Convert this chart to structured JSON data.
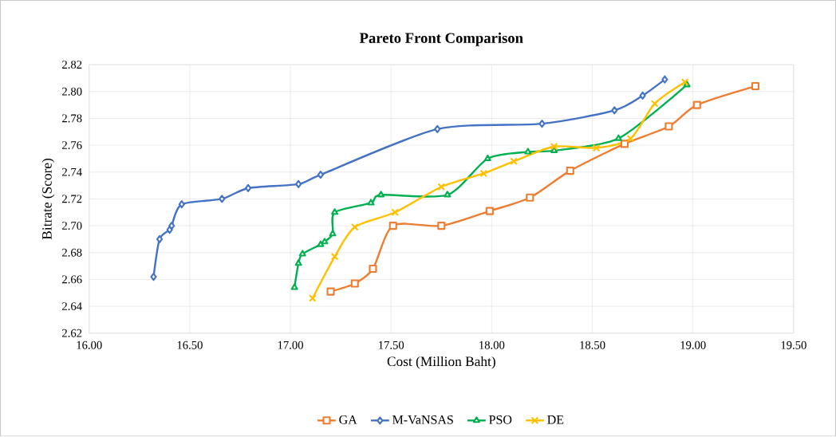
{
  "chart_data": {
    "type": "line",
    "title": "Pareto Front Comparison",
    "xlabel": "Cost (Million Baht)",
    "ylabel": "Bitrate (Score)",
    "xlim": [
      16,
      19.5
    ],
    "ylim": [
      2.62,
      2.82
    ],
    "xticks": [
      {
        "value": 16,
        "label": "16.00"
      },
      {
        "value": 16.5,
        "label": "16.50"
      },
      {
        "value": 17,
        "label": "17.00"
      },
      {
        "value": 17.5,
        "label": "17.50"
      },
      {
        "value": 18,
        "label": "18.00"
      },
      {
        "value": 18.5,
        "label": "18.50"
      },
      {
        "value": 19,
        "label": "19.00"
      },
      {
        "value": 19.5,
        "label": "19.50"
      }
    ],
    "yticks": [
      {
        "value": 2.62,
        "label": "2.62"
      },
      {
        "value": 2.64,
        "label": "2.64"
      },
      {
        "value": 2.66,
        "label": "2.66"
      },
      {
        "value": 2.68,
        "label": "2.68"
      },
      {
        "value": 2.7,
        "label": "2.70"
      },
      {
        "value": 2.72,
        "label": "2.72"
      },
      {
        "value": 2.74,
        "label": "2.74"
      },
      {
        "value": 2.76,
        "label": "2.76"
      },
      {
        "value": 2.78,
        "label": "2.78"
      },
      {
        "value": 2.8,
        "label": "2.80"
      },
      {
        "value": 2.82,
        "label": "2.82"
      }
    ],
    "grid": true,
    "legend": "bottom",
    "series": [
      {
        "name": "GA",
        "color": "#ed7d31",
        "marker": "square",
        "x": [
          17.2,
          17.32,
          17.41,
          17.51,
          17.75,
          17.99,
          18.19,
          18.39,
          18.66,
          18.88,
          19.02,
          19.31
        ],
        "values": [
          2.651,
          2.657,
          2.668,
          2.7,
          2.7,
          2.711,
          2.721,
          2.741,
          2.761,
          2.774,
          2.79,
          2.804
        ]
      },
      {
        "name": "M-VaNSAS",
        "color": "#4472c4",
        "marker": "diamond",
        "x": [
          16.32,
          16.35,
          16.4,
          16.41,
          16.46,
          16.66,
          16.79,
          17.04,
          17.15,
          17.73,
          18.25,
          18.61,
          18.75,
          18.86
        ],
        "values": [
          2.662,
          2.69,
          2.697,
          2.7,
          2.716,
          2.72,
          2.728,
          2.731,
          2.738,
          2.772,
          2.776,
          2.786,
          2.797,
          2.809
        ]
      },
      {
        "name": "PSO",
        "color": "#00b050",
        "marker": "triangle",
        "x": [
          17.02,
          17.04,
          17.06,
          17.15,
          17.17,
          17.21,
          17.22,
          17.4,
          17.45,
          17.78,
          17.98,
          18.18,
          18.31,
          18.63,
          18.97
        ],
        "values": [
          2.654,
          2.672,
          2.679,
          2.686,
          2.688,
          2.694,
          2.71,
          2.717,
          2.723,
          2.723,
          2.75,
          2.755,
          2.756,
          2.765,
          2.805
        ]
      },
      {
        "name": "DE",
        "color": "#ffc000",
        "marker": "cross",
        "x": [
          17.11,
          17.22,
          17.32,
          17.52,
          17.75,
          17.96,
          18.11,
          18.31,
          18.52,
          18.69,
          18.81,
          18.96
        ],
        "values": [
          2.646,
          2.677,
          2.699,
          2.71,
          2.729,
          2.739,
          2.748,
          2.759,
          2.758,
          2.765,
          2.791,
          2.807
        ]
      }
    ]
  }
}
